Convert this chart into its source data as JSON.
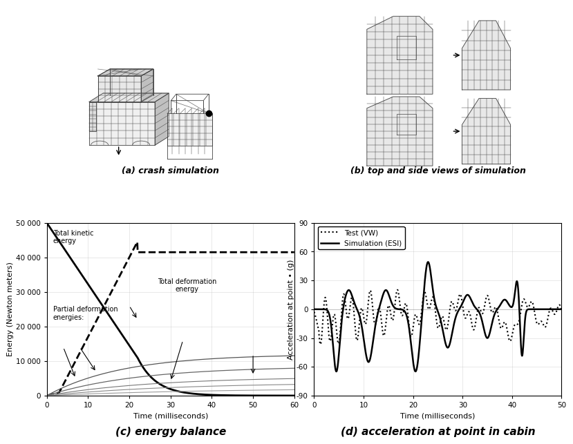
{
  "title_a": "(a) crash simulation",
  "title_b": "(b) top and side views of simulation",
  "title_c": "(c) energy balance",
  "title_d": "(d) acceleration at point in cabin",
  "energy_xlabel": "Time (milliseconds)",
  "energy_ylabel": "Energy (Newton meters)",
  "energy_xlim": [
    0,
    60
  ],
  "energy_ylim": [
    0,
    50000
  ],
  "energy_yticks": [
    0,
    10000,
    20000,
    30000,
    40000,
    50000
  ],
  "energy_ytick_labels": [
    "0",
    "10 000",
    "20 000",
    "30 000",
    "40 000",
    "50 000"
  ],
  "energy_xticks": [
    0,
    10,
    20,
    30,
    40,
    50,
    60
  ],
  "accel_xlabel": "Time (milliseconds)",
  "accel_ylabel": "Acceleration at point • (g)",
  "accel_xlim": [
    0,
    50
  ],
  "accel_ylim": [
    -90,
    90
  ],
  "accel_yticks": [
    -90,
    -60,
    -30,
    0,
    30,
    60,
    90
  ],
  "accel_xticks": [
    0,
    10,
    20,
    30,
    40,
    50
  ],
  "legend_test": "Test (VW)",
  "legend_sim": "Simulation (ESI)",
  "label_total_kinetic": "Total kinetic\nenergy",
  "label_total_deform": "Total deformation\nenergy",
  "label_partial": "Partial deformation\nenergies:",
  "background_color": "#ffffff"
}
